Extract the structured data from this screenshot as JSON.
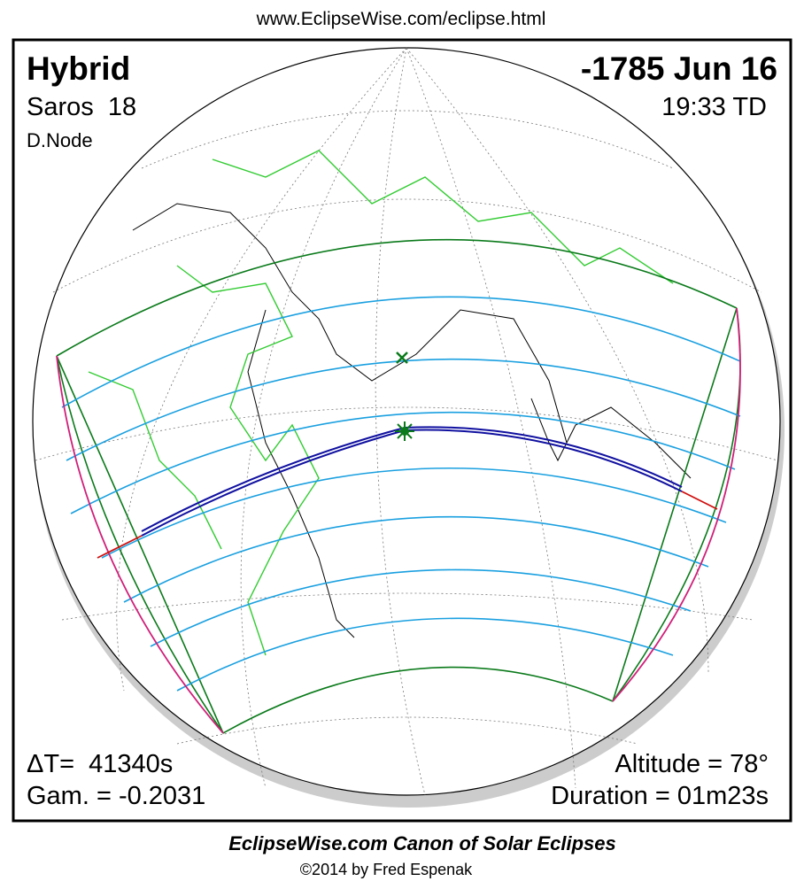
{
  "header": {
    "url": "www.EclipseWise.com/eclipse.html"
  },
  "eclipse": {
    "type": "Hybrid",
    "saros": "Saros  18",
    "node": "D.Node",
    "date": "-1785 Jun 16",
    "time": "19:33 TD",
    "delta_t": "ΔT=  41340s",
    "gamma": "Gam. = -0.2031",
    "altitude": "Altitude = 78°",
    "duration": "Duration = 01m23s"
  },
  "footer": {
    "title": "EclipseWise.com Canon of Solar Eclipses",
    "copyright": "©2014 by Fred Espenak"
  }
}
